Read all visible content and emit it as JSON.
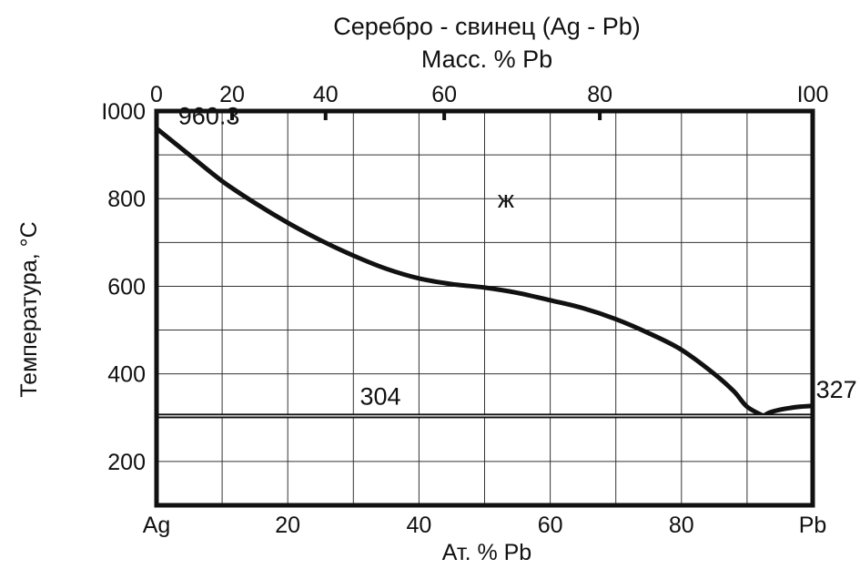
{
  "chart_data": {
    "type": "line",
    "title": "Серебро - свинец (Ag - Pb)",
    "subtitle": "Масс. % Pb",
    "xlabel": "Ат. % Pb",
    "ylabel": "Температура,  °C",
    "xlim": [
      0,
      100
    ],
    "ylim": [
      100,
      1000
    ],
    "grid": true,
    "x_ticks": [
      {
        "value": 0,
        "label": "Ag"
      },
      {
        "value": 20,
        "label": "20"
      },
      {
        "value": 40,
        "label": "40"
      },
      {
        "value": 60,
        "label": "60"
      },
      {
        "value": 80,
        "label": "80"
      },
      {
        "value": 100,
        "label": "Pb"
      }
    ],
    "y_ticks": [
      {
        "value": 200,
        "label": "200"
      },
      {
        "value": 400,
        "label": "400"
      },
      {
        "value": 600,
        "label": "600"
      },
      {
        "value": 800,
        "label": "800"
      },
      {
        "value": 1000,
        "label": "I000"
      }
    ],
    "top_ticks": [
      {
        "value": 0,
        "label": "0"
      },
      {
        "value": 20,
        "label": "20"
      },
      {
        "value": 40,
        "label": "40"
      },
      {
        "value": 60,
        "label": "60"
      },
      {
        "value": 80,
        "label": "80"
      },
      {
        "value": 100,
        "label": "I00"
      }
    ],
    "series": [
      {
        "type": "line",
        "x": [
          0,
          5,
          10,
          15,
          20,
          25,
          30,
          35,
          40,
          45,
          50,
          55,
          60,
          65,
          70,
          75,
          80,
          85,
          88,
          90,
          92.5
        ],
        "y": [
          960.3,
          900,
          840,
          790,
          745,
          705,
          670,
          640,
          618,
          605,
          597,
          585,
          568,
          550,
          525,
          493,
          455,
          400,
          360,
          325,
          304
        ]
      },
      {
        "type": "line",
        "x": [
          92.5,
          93.5,
          95,
          96.5,
          98,
          100
        ],
        "y": [
          304,
          312,
          318,
          322,
          325,
          327
        ]
      },
      {
        "type": "hline",
        "y": 304,
        "x": [
          0,
          100
        ]
      }
    ],
    "annotations": [
      {
        "text": "960.3",
        "x": 3.3,
        "y": 970
      },
      {
        "text": "ж",
        "x": 52,
        "y": 780
      },
      {
        "text": "304",
        "x": 31,
        "y": 330
      },
      {
        "text": "327",
        "x": 100.5,
        "y": 345
      }
    ]
  }
}
